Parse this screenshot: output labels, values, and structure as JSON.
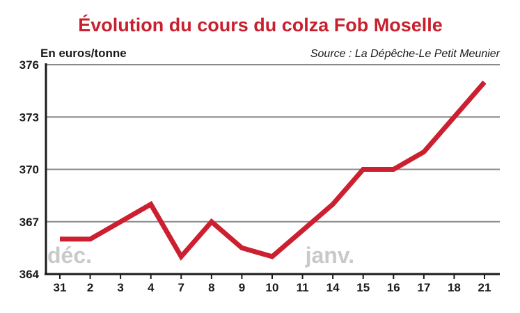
{
  "chart_data": {
    "type": "line",
    "title": "Évolution du cours du colza Fob Moselle",
    "ylabel": "En euros/tonne",
    "source": "Source : La Dépêche-Le Petit Meunier",
    "categories": [
      "31",
      "2",
      "3",
      "4",
      "7",
      "8",
      "9",
      "10",
      "11",
      "14",
      "15",
      "16",
      "17",
      "18",
      "21"
    ],
    "series": [
      {
        "values": [
          366,
          366,
          367,
          368,
          365,
          367,
          365.5,
          365,
          366.5,
          368,
          370,
          370,
          371,
          373,
          375
        ],
        "color": "#cc1f2f"
      }
    ],
    "yticks": [
      "364",
      "367",
      "370",
      "373",
      "376"
    ],
    "ylim": [
      364,
      376
    ],
    "grid": true,
    "annotations": [
      {
        "text": "déc.",
        "category_index": 0
      },
      {
        "text": "janv.",
        "category_index": 8
      }
    ]
  }
}
